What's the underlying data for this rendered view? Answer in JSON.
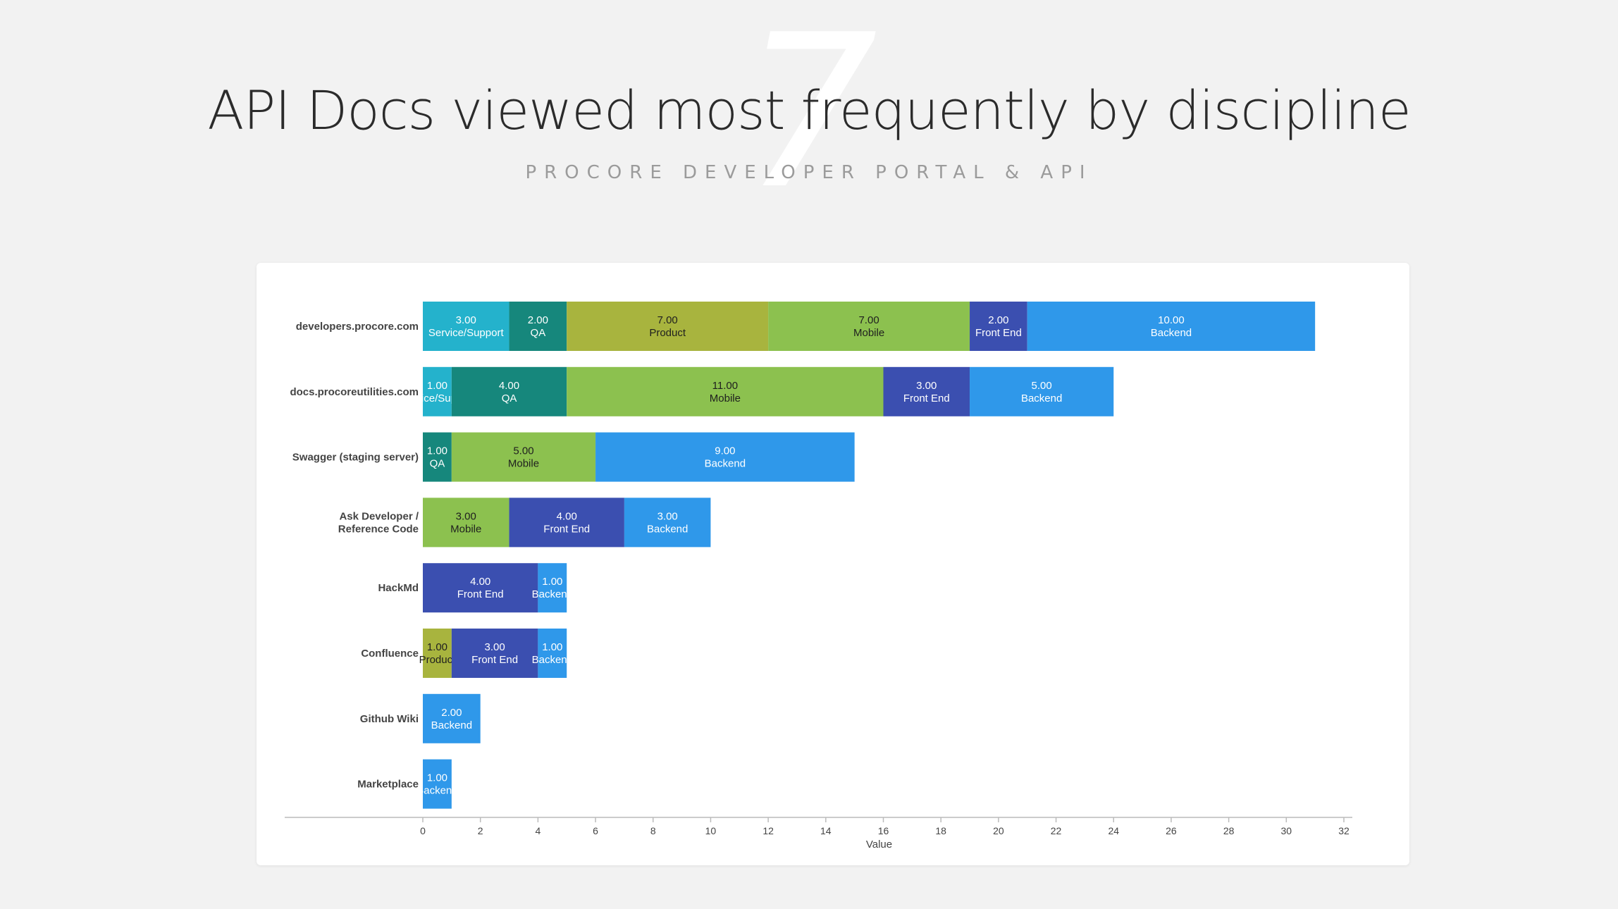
{
  "page": {
    "big_number": "7",
    "title": "API Docs viewed most frequently by discipline",
    "subtitle": "PROCORE DEVELOPER PORTAL & API"
  },
  "colors": {
    "Service/Support": "#24b2cc",
    "QA": "#16877c",
    "Product": "#a8b43e",
    "Mobile": "#8cc14f",
    "Front End": "#3b4fb0",
    "Backend": "#2f98ea"
  },
  "chart_data": {
    "type": "bar",
    "orientation": "horizontal",
    "stacked": true,
    "xlabel": "Value",
    "xlim": [
      0,
      32
    ],
    "xticks": [
      0,
      2,
      4,
      6,
      8,
      10,
      12,
      14,
      16,
      18,
      20,
      22,
      24,
      26,
      28,
      30,
      32
    ],
    "grid": false,
    "categories": [
      "developers.procore.com",
      "docs.procoreutilities.com",
      "Swagger (staging server)",
      "Ask Developer / Reference Code",
      "HackMd",
      "Confluence",
      "Github Wiki",
      "Marketplace"
    ],
    "category_lines": [
      [
        "developers.procore.com"
      ],
      [
        "docs.procoreutilities.com"
      ],
      [
        "Swagger (staging server)"
      ],
      [
        "Ask Developer /",
        "Reference Code"
      ],
      [
        "HackMd"
      ],
      [
        "Confluence"
      ],
      [
        "Github Wiki"
      ],
      [
        "Marketplace"
      ]
    ],
    "series": [
      {
        "name": "Service/Support",
        "values": [
          3,
          1,
          0,
          0,
          0,
          0,
          0,
          0
        ]
      },
      {
        "name": "QA",
        "values": [
          2,
          4,
          1,
          0,
          0,
          0,
          0,
          0
        ]
      },
      {
        "name": "Product",
        "values": [
          7,
          0,
          0,
          0,
          0,
          1,
          0,
          0
        ]
      },
      {
        "name": "Mobile",
        "values": [
          7,
          11,
          5,
          3,
          0,
          0,
          0,
          0
        ]
      },
      {
        "name": "Front End",
        "values": [
          2,
          3,
          0,
          4,
          4,
          3,
          0,
          0
        ]
      },
      {
        "name": "Backend",
        "values": [
          10,
          5,
          9,
          3,
          1,
          1,
          2,
          1
        ]
      }
    ]
  }
}
